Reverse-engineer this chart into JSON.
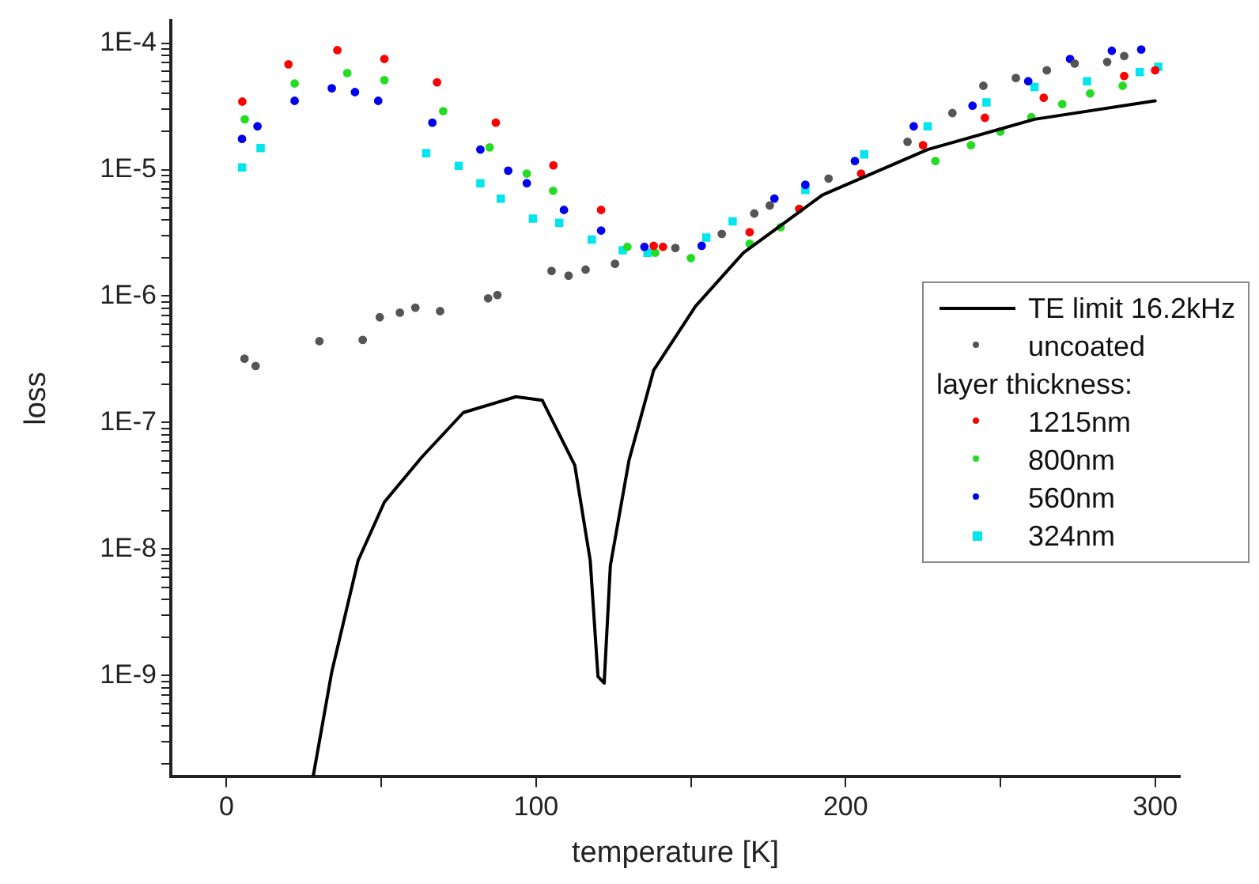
{
  "chart_data": {
    "type": "scatter",
    "xlabel": "temperature [K]",
    "ylabel": "loss",
    "legend_title": "layer thickness:",
    "legend": "center right",
    "log": "y",
    "grid": false,
    "xlim": [
      -18,
      308
    ],
    "xticks": [
      0,
      {
        "value": 50,
        "label": null
      },
      100,
      {
        "value": 150,
        "label": null
      },
      200,
      {
        "value": 250,
        "label": null
      },
      300
    ],
    "ylim": [
      1.6e-10,
      0.00015
    ],
    "yticks": [
      {
        "value": 2e-10,
        "label": null
      },
      {
        "value": 3e-10,
        "label": null
      },
      {
        "value": 4e-10,
        "label": null
      },
      {
        "value": 5e-10,
        "label": null
      },
      {
        "value": 6e-10,
        "label": null
      },
      {
        "value": 7e-10,
        "label": null
      },
      {
        "value": 8e-10,
        "label": null
      },
      {
        "value": 9e-10,
        "label": null
      },
      {
        "value": 1e-09,
        "label": "1E-9"
      },
      {
        "value": 2e-09,
        "label": null
      },
      {
        "value": 3e-09,
        "label": null
      },
      {
        "value": 4e-09,
        "label": null
      },
      {
        "value": 5e-09,
        "label": null
      },
      {
        "value": 6e-09,
        "label": null
      },
      {
        "value": 7e-09,
        "label": null
      },
      {
        "value": 8e-09,
        "label": null
      },
      {
        "value": 9e-09,
        "label": null
      },
      {
        "value": 1e-08,
        "label": "1E-8"
      },
      {
        "value": 2e-08,
        "label": null
      },
      {
        "value": 3e-08,
        "label": null
      },
      {
        "value": 4e-08,
        "label": null
      },
      {
        "value": 5e-08,
        "label": null
      },
      {
        "value": 6e-08,
        "label": null
      },
      {
        "value": 7e-08,
        "label": null
      },
      {
        "value": 8e-08,
        "label": null
      },
      {
        "value": 9e-08,
        "label": null
      },
      {
        "value": 1e-07,
        "label": "1E-7"
      },
      {
        "value": 2e-07,
        "label": null
      },
      {
        "value": 3e-07,
        "label": null
      },
      {
        "value": 4e-07,
        "label": null
      },
      {
        "value": 5e-07,
        "label": null
      },
      {
        "value": 6e-07,
        "label": null
      },
      {
        "value": 7e-07,
        "label": null
      },
      {
        "value": 8e-07,
        "label": null
      },
      {
        "value": 9e-07,
        "label": null
      },
      {
        "value": 1e-06,
        "label": "1E-6"
      },
      {
        "value": 2e-06,
        "label": null
      },
      {
        "value": 3e-06,
        "label": null
      },
      {
        "value": 4e-06,
        "label": null
      },
      {
        "value": 5e-06,
        "label": null
      },
      {
        "value": 6e-06,
        "label": null
      },
      {
        "value": 7e-06,
        "label": null
      },
      {
        "value": 8e-06,
        "label": null
      },
      {
        "value": 9e-06,
        "label": null
      },
      {
        "value": 1e-05,
        "label": "1E-5"
      },
      {
        "value": 2e-05,
        "label": null
      },
      {
        "value": 3e-05,
        "label": null
      },
      {
        "value": 4e-05,
        "label": null
      },
      {
        "value": 5e-05,
        "label": null
      },
      {
        "value": 6e-05,
        "label": null
      },
      {
        "value": 7e-05,
        "label": null
      },
      {
        "value": 8e-05,
        "label": null
      },
      {
        "value": 9e-05,
        "label": null
      },
      {
        "value": 0.0001,
        "label": "1E-4"
      }
    ],
    "series": [
      {
        "name": "TE limit 16.2kHz",
        "type": "line",
        "marker": "none",
        "line_style": "solid",
        "color": "#000000",
        "x": [
          28,
          34,
          42.5,
          51,
          63,
          76.5,
          93.5,
          102,
          112.5,
          117.5,
          120,
          122,
          124,
          130,
          138,
          151.5,
          167,
          192.5,
          226.5,
          261,
          300
        ],
        "values": [
          1.6e-10,
          1.07e-09,
          8.1e-09,
          2.35e-08,
          5.3e-08,
          1.2e-07,
          1.6e-07,
          1.5e-07,
          4.6e-08,
          8.1e-09,
          9.8e-10,
          8.7e-10,
          7.4e-09,
          5e-08,
          2.6e-07,
          8.3e-07,
          2.2e-06,
          6.3e-06,
          1.44e-05,
          2.5e-05,
          3.5e-05
        ]
      },
      {
        "name": "uncoated",
        "marker": "circle",
        "color": "#555555",
        "x": [
          5.8,
          9.4,
          30,
          44,
          49.5,
          56,
          61,
          69,
          84.5,
          87.5,
          105,
          110.5,
          116,
          125.5,
          145,
          160,
          170.5,
          175.5,
          194.5,
          220,
          234.5,
          244.5,
          255,
          265,
          274,
          284.5,
          290
        ],
        "values": [
          3.2e-07,
          2.8e-07,
          4.4e-07,
          4.5e-07,
          6.8e-07,
          7.4e-07,
          8.1e-07,
          7.6e-07,
          9.6e-07,
          1.02e-06,
          1.58e-06,
          1.45e-06,
          1.62e-06,
          1.8e-06,
          2.4e-06,
          3.1e-06,
          4.5e-06,
          5.2e-06,
          8.5e-06,
          1.66e-05,
          2.8e-05,
          4.6e-05,
          5.3e-05,
          6.1e-05,
          6.9e-05,
          7.1e-05,
          7.9e-05
        ]
      },
      {
        "name": "1215nm",
        "marker": "circle",
        "color": "#ff0000",
        "x": [
          5.1,
          20,
          35.8,
          51,
          68,
          87,
          105.6,
          121,
          138,
          141,
          169,
          185,
          205,
          225,
          245,
          264,
          290,
          300
        ],
        "values": [
          3.45e-05,
          6.8e-05,
          8.8e-05,
          7.5e-05,
          4.9e-05,
          2.35e-05,
          1.08e-05,
          4.8e-06,
          2.5e-06,
          2.45e-06,
          3.2e-06,
          4.9e-06,
          9.3e-06,
          1.56e-05,
          2.57e-05,
          3.7e-05,
          5.5e-05,
          6.1e-05
        ]
      },
      {
        "name": "800nm",
        "marker": "circle",
        "color": "#22dd22",
        "x": [
          5.9,
          22,
          39,
          51,
          70,
          85,
          97,
          105.5,
          129.5,
          138.5,
          150,
          169,
          179,
          229,
          240.5,
          250,
          260,
          270,
          279,
          289.5
        ],
        "values": [
          2.5e-05,
          4.8e-05,
          5.8e-05,
          5.1e-05,
          2.9e-05,
          1.5e-05,
          9.3e-06,
          6.8e-06,
          2.45e-06,
          2.2e-06,
          2e-06,
          2.6e-06,
          3.5e-06,
          1.17e-05,
          1.56e-05,
          2e-05,
          2.6e-05,
          3.3e-05,
          4e-05,
          4.6e-05
        ]
      },
      {
        "name": "560nm",
        "marker": "circle",
        "color": "#0000ee",
        "x": [
          5,
          10,
          22,
          34,
          41.5,
          49,
          66.5,
          82,
          91,
          97,
          109,
          121,
          135,
          153.5,
          177,
          187,
          203,
          222,
          241,
          259,
          272.5,
          286,
          295.5
        ],
        "values": [
          1.75e-05,
          2.2e-05,
          3.5e-05,
          4.4e-05,
          4.1e-05,
          3.5e-05,
          2.35e-05,
          1.44e-05,
          9.8e-06,
          7.8e-06,
          4.8e-06,
          3.3e-06,
          2.45e-06,
          2.5e-06,
          5.9e-06,
          7.6e-06,
          1.17e-05,
          2.2e-05,
          3.2e-05,
          5e-05,
          7.5e-05,
          8.7e-05,
          8.9e-05
        ]
      },
      {
        "name": "324nm",
        "marker": "square",
        "color": "#00e5ee",
        "x": [
          5,
          11,
          64.5,
          75,
          82,
          88.6,
          99,
          107.5,
          118,
          128,
          136,
          155,
          163.5,
          187,
          206,
          226.5,
          245.5,
          261,
          278,
          295,
          301
        ],
        "values": [
          1.04e-05,
          1.48e-05,
          1.35e-05,
          1.07e-05,
          7.8e-06,
          5.9e-06,
          4.1e-06,
          3.8e-06,
          2.8e-06,
          2.3e-06,
          2.2e-06,
          2.9e-06,
          3.9e-06,
          6.9e-06,
          1.32e-05,
          2.2e-05,
          3.4e-05,
          4.5e-05,
          5e-05,
          5.9e-05,
          6.5e-05
        ]
      }
    ]
  }
}
